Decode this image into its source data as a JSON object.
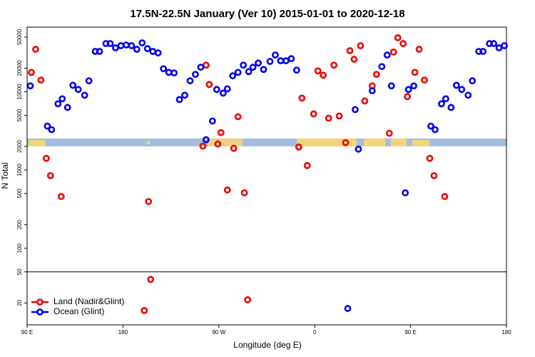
{
  "chart_data": {
    "type": "scatter",
    "title": "17.5N-22.5N January (Ver 10)   2015-01-01 to 2020-12-18",
    "xlabel": "Longitude (deg E)",
    "ylabel": "N Total",
    "ylog": true,
    "legend": "bottom-left",
    "xlim": [
      90,
      540
    ],
    "xticks": [
      {
        "value": 90,
        "label": "90 E"
      },
      180,
      {
        "value": 270,
        "label": "90 W"
      },
      {
        "value": 360,
        "label": "0"
      },
      {
        "value": 450,
        "label": "90 E"
      },
      {
        "value": 540,
        "label": "180"
      }
    ],
    "ylim": [
      10.5,
      67000
    ],
    "yticks": [
      50000,
      20000,
      10000,
      5000,
      2000,
      1000,
      500,
      200,
      100,
      50,
      20
    ],
    "series": [
      {
        "name": "Land (Nadir&Glint)",
        "color": "#ee0000",
        "x": [
          94,
          98,
          103,
          108,
          112,
          122,
          204,
          206,
          200,
          255,
          258,
          261,
          269,
          272,
          278,
          284,
          288,
          294,
          297,
          345,
          348,
          353,
          359,
          363,
          368,
          373,
          378,
          383,
          389,
          393,
          397,
          403,
          407,
          414,
          418,
          430,
          434,
          438,
          443,
          447,
          454,
          458,
          463,
          468,
          472,
          482
        ],
        "values": [
          17700,
          34900,
          14100,
          1410,
          848,
          459,
          396,
          40,
          16,
          2020,
          21900,
          12400,
          2150,
          3010,
          556,
          1890,
          4800,
          511,
          22,
          1970,
          8300,
          1140,
          5210,
          18500,
          16300,
          4600,
          21900,
          4900,
          2240,
          33500,
          26000,
          38800,
          7630,
          11900,
          16700,
          2950,
          32100,
          49000,
          41300,
          8670,
          17700,
          34900,
          14100,
          1410,
          848,
          459
        ]
      },
      {
        "name": "Ocean (Glint)",
        "color": "#0000ee",
        "x": [
          93,
          109,
          113,
          119,
          123,
          128,
          133,
          138,
          144,
          148,
          154,
          158,
          164,
          168,
          173,
          178,
          183,
          188,
          193,
          198,
          203,
          208,
          213,
          218,
          223,
          228,
          233,
          238,
          243,
          248,
          253,
          258,
          264,
          268,
          274,
          278,
          283,
          288,
          293,
          298,
          302,
          307,
          312,
          318,
          323,
          328,
          333,
          338,
          343,
          391,
          398,
          401,
          414,
          423,
          428,
          432,
          445,
          448,
          453,
          469,
          473,
          479,
          483,
          488,
          493,
          498,
          504,
          508,
          514,
          518,
          524,
          528,
          533,
          538
        ],
        "values": [
          11900,
          3640,
          3280,
          7020,
          8130,
          6300,
          12100,
          10700,
          9040,
          13800,
          32800,
          32800,
          41300,
          41300,
          36400,
          38800,
          39600,
          38800,
          34900,
          42200,
          35600,
          32800,
          31400,
          19700,
          17700,
          17400,
          7960,
          9040,
          13800,
          16700,
          20600,
          2440,
          4230,
          10700,
          9610,
          10900,
          16000,
          17700,
          21900,
          18100,
          20600,
          23300,
          19300,
          24400,
          29500,
          24900,
          24900,
          26500,
          18900,
          17,
          5920,
          1850,
          10300,
          21000,
          29500,
          11900,
          511,
          10700,
          11900,
          3640,
          3280,
          7020,
          8130,
          6300,
          12100,
          10700,
          9040,
          13800,
          32800,
          32800,
          41300,
          41300,
          36400,
          38800
        ]
      }
    ]
  }
}
